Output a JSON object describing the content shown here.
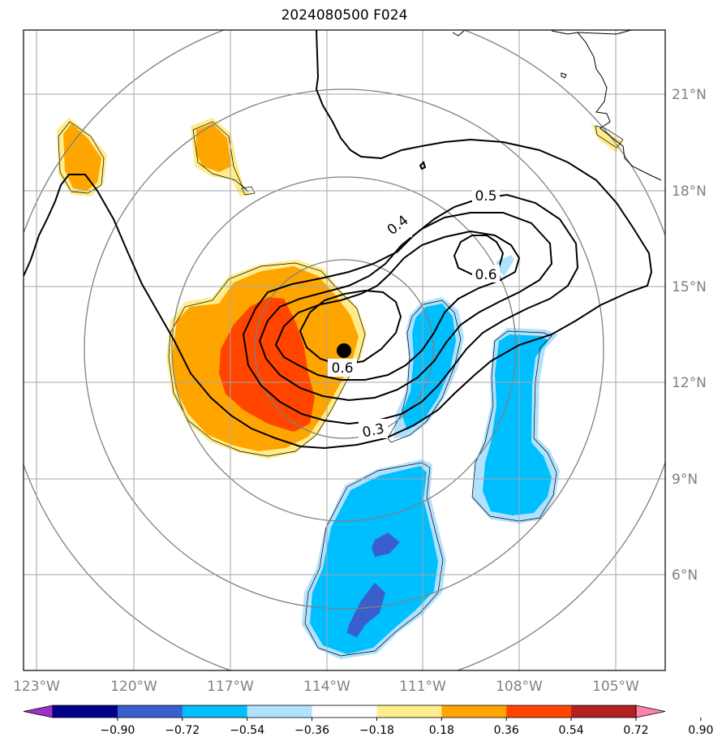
{
  "title": "2024080500 F024",
  "chart_data": {
    "type": "map",
    "projection": "azimuthal (range rings centered on storm)",
    "lon_ticks": [
      "123°W",
      "120°W",
      "117°W",
      "114°W",
      "111°W",
      "108°W",
      "105°W"
    ],
    "lat_ticks": [
      "21°N",
      "18°N",
      "15°N",
      "12°N",
      "9°N",
      "6°N"
    ],
    "storm_center": {
      "lon": -113.75,
      "lat": 13.1
    },
    "contour_labels": [
      "0.3",
      "0.4",
      "0.5",
      "0.6",
      "0.6"
    ],
    "colorbar": {
      "ticks": [
        "−0.90",
        "−0.72",
        "−0.54",
        "−0.36",
        "−0.18",
        "0.18",
        "0.36",
        "0.54",
        "0.72",
        "0.90"
      ],
      "colors": [
        "#9932cc",
        "#00008b",
        "#3a5fcd",
        "#00bfff",
        "#b0e2ff",
        "#ffffff",
        "#ffec8b",
        "#ffa500",
        "#ff4500",
        "#b22222",
        "#ff82ab"
      ],
      "extend": "both"
    },
    "grid": true
  }
}
